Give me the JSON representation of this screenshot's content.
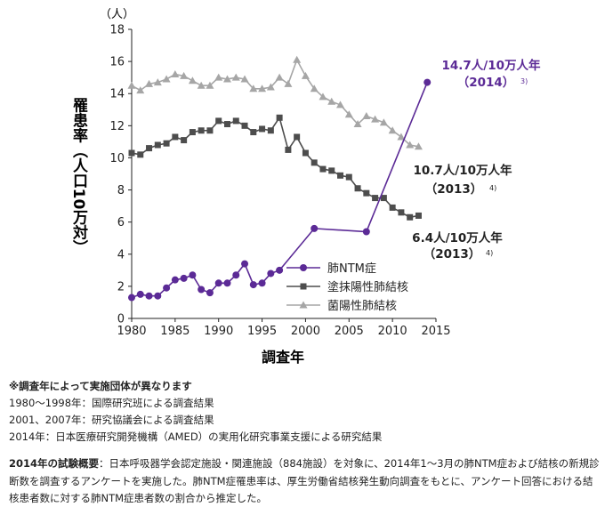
{
  "chart_data": {
    "type": "line",
    "xlabel": "調査年",
    "ylabel": "罹患率（人口10万対）",
    "yunit": "（人）",
    "xlim": [
      1980,
      2015
    ],
    "ylim": [
      0,
      18
    ],
    "xticks": [
      1980,
      1985,
      1990,
      1995,
      2000,
      2005,
      2010,
      2015
    ],
    "yticks": [
      0,
      2,
      4,
      6,
      8,
      10,
      12,
      14,
      16,
      18
    ],
    "grid": false,
    "legend_position": "lower-right",
    "series": [
      {
        "name": "肺NTM症",
        "color": "#5b2a96",
        "marker": "circle",
        "x": [
          1980,
          1981,
          1982,
          1983,
          1984,
          1985,
          1986,
          1987,
          1988,
          1989,
          1990,
          1991,
          1992,
          1993,
          1994,
          1995,
          1996,
          1997,
          2001,
          2007,
          2014
        ],
        "values": [
          1.3,
          1.5,
          1.4,
          1.4,
          1.9,
          2.4,
          2.5,
          2.7,
          1.8,
          1.6,
          2.2,
          2.2,
          2.7,
          3.4,
          2.1,
          2.2,
          2.8,
          3.0,
          5.6,
          5.4,
          14.7
        ]
      },
      {
        "name": "塗抹陽性肺結核",
        "color": "#4d4d4d",
        "marker": "square",
        "x": [
          1980,
          1981,
          1982,
          1983,
          1984,
          1985,
          1986,
          1987,
          1988,
          1989,
          1990,
          1991,
          1992,
          1993,
          1994,
          1995,
          1996,
          1997,
          1998,
          1999,
          2000,
          2001,
          2002,
          2003,
          2004,
          2005,
          2006,
          2007,
          2008,
          2009,
          2010,
          2011,
          2012,
          2013
        ],
        "values": [
          10.3,
          10.2,
          10.6,
          10.8,
          10.9,
          11.3,
          11.1,
          11.6,
          11.7,
          11.7,
          12.3,
          12.1,
          12.3,
          12.0,
          11.6,
          11.8,
          11.7,
          12.5,
          10.5,
          11.3,
          10.3,
          9.7,
          9.3,
          9.2,
          8.9,
          8.8,
          8.1,
          7.8,
          7.5,
          7.5,
          6.9,
          6.6,
          6.3,
          6.4
        ]
      },
      {
        "name": "菌陽性肺結核",
        "color": "#a6a6a6",
        "marker": "triangle",
        "x": [
          1980,
          1981,
          1982,
          1983,
          1984,
          1985,
          1986,
          1987,
          1988,
          1989,
          1990,
          1991,
          1992,
          1993,
          1994,
          1995,
          1996,
          1997,
          1998,
          1999,
          2000,
          2001,
          2002,
          2003,
          2004,
          2005,
          2006,
          2007,
          2008,
          2009,
          2010,
          2011,
          2012,
          2013
        ],
        "values": [
          14.5,
          14.2,
          14.6,
          14.7,
          14.9,
          15.2,
          15.1,
          14.8,
          14.5,
          14.5,
          15.0,
          14.9,
          15.0,
          14.9,
          14.3,
          14.3,
          14.4,
          15.0,
          14.6,
          16.1,
          15.1,
          14.3,
          13.8,
          13.5,
          13.3,
          12.7,
          12.1,
          12.6,
          12.4,
          12.2,
          11.7,
          11.3,
          10.8,
          10.7
        ]
      }
    ],
    "annotations": {
      "ntm_line1": "14.7人/10万人年",
      "ntm_line2": "（2014）",
      "ntm_ref": "3)",
      "bac_line1": "10.7人/10万人年",
      "bac_line2": "（2013）",
      "bac_ref": "4)",
      "smear_line1": "6.4人/10万人年",
      "smear_line2": "（2013）",
      "smear_ref": "4)"
    }
  },
  "notes": {
    "heading": "※調査年によって実施団体が異なります",
    "lines": [
      "1980〜1998年：国際研究班による調査結果",
      "2001、2007年：研究協議会による調査結果",
      "2014年：日本医療研究開発機構（AMED）の実用化研究事業支援による研究結果"
    ]
  },
  "summary": {
    "label": "2014年の試験概要",
    "text": "：日本呼吸器学会認定施設・関連施設（884施設）を対象に、2014年1〜3月の肺NTM症および結核の新規診断数を調査するアンケートを実施した。肺NTM症罹患率は、厚生労働省結核発生動向調査をもとに、アンケート回答における結核患者数に対する肺NTM症患者数の割合から推定した。"
  }
}
